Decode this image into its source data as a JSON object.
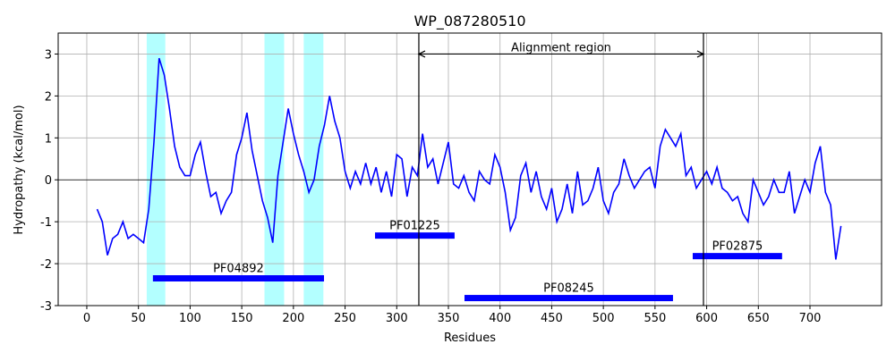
{
  "chart_data": {
    "type": "line",
    "title": "WP_087280510",
    "xlabel": "Residues",
    "ylabel": "Hydropathy (kcal/mol)",
    "x": [
      10,
      15,
      20,
      25,
      30,
      35,
      40,
      45,
      50,
      55,
      60,
      65,
      70,
      75,
      80,
      85,
      90,
      95,
      100,
      105,
      110,
      115,
      120,
      125,
      130,
      135,
      140,
      145,
      150,
      155,
      160,
      165,
      170,
      175,
      180,
      185,
      190,
      195,
      200,
      205,
      210,
      215,
      220,
      225,
      230,
      235,
      240,
      245,
      250,
      255,
      260,
      265,
      270,
      275,
      280,
      285,
      290,
      295,
      300,
      305,
      310,
      315,
      320,
      325,
      330,
      335,
      340,
      345,
      350,
      355,
      360,
      365,
      370,
      375,
      380,
      385,
      390,
      395,
      400,
      405,
      410,
      415,
      420,
      425,
      430,
      435,
      440,
      445,
      450,
      455,
      460,
      465,
      470,
      475,
      480,
      485,
      490,
      495,
      500,
      505,
      510,
      515,
      520,
      525,
      530,
      535,
      540,
      545,
      550,
      555,
      560,
      565,
      570,
      575,
      580,
      585,
      590,
      595,
      600,
      605,
      610,
      615,
      620,
      625,
      630,
      635,
      640,
      645,
      650,
      655,
      660,
      665,
      670,
      675,
      680,
      685,
      690,
      695,
      700,
      705,
      710,
      715,
      720,
      725,
      730
    ],
    "values": [
      -0.7,
      -1.0,
      -1.8,
      -1.4,
      -1.3,
      -1.0,
      -1.4,
      -1.3,
      -1.4,
      -1.5,
      -0.7,
      0.9,
      2.9,
      2.5,
      1.7,
      0.8,
      0.3,
      0.1,
      0.1,
      0.6,
      0.9,
      0.2,
      -0.4,
      -0.3,
      -0.8,
      -0.5,
      -0.3,
      0.6,
      1.0,
      1.6,
      0.7,
      0.1,
      -0.5,
      -0.9,
      -1.5,
      0.1,
      0.9,
      1.7,
      1.1,
      0.6,
      0.2,
      -0.3,
      0.0,
      0.8,
      1.3,
      2.0,
      1.4,
      1.0,
      0.2,
      -0.2,
      0.2,
      -0.1,
      0.4,
      -0.1,
      0.3,
      -0.3,
      0.2,
      -0.4,
      0.6,
      0.5,
      -0.4,
      0.3,
      0.1,
      1.1,
      0.3,
      0.5,
      -0.1,
      0.4,
      0.9,
      -0.1,
      -0.2,
      0.1,
      -0.3,
      -0.5,
      0.2,
      0.0,
      -0.1,
      0.6,
      0.3,
      -0.3,
      -1.2,
      -0.9,
      0.1,
      0.4,
      -0.3,
      0.2,
      -0.4,
      -0.7,
      -0.2,
      -1.0,
      -0.7,
      -0.1,
      -0.8,
      0.2,
      -0.6,
      -0.5,
      -0.2,
      0.3,
      -0.5,
      -0.8,
      -0.3,
      -0.1,
      0.5,
      0.1,
      -0.2,
      0.0,
      0.2,
      0.3,
      -0.2,
      0.8,
      1.2,
      1.0,
      0.8,
      1.1,
      0.1,
      0.3,
      -0.2,
      0.0,
      0.2,
      -0.1,
      0.3,
      -0.2,
      -0.3,
      -0.5,
      -0.4,
      -0.8,
      -1.0,
      0.0,
      -0.3,
      -0.6,
      -0.4,
      0.0,
      -0.3,
      -0.3,
      0.2,
      -0.8,
      -0.4,
      0.0,
      -0.3,
      0.4,
      0.8,
      -0.3,
      -0.6,
      -1.9,
      -1.1
    ],
    "color": "#0000ff",
    "xlim": [
      -27.7,
      769.3
    ],
    "ylim": [
      -3,
      3.5
    ],
    "xticks": [
      0,
      50,
      100,
      150,
      200,
      250,
      300,
      350,
      400,
      450,
      500,
      550,
      600,
      650,
      700
    ],
    "yticks": [
      -3,
      -2,
      -1,
      0,
      1,
      2,
      3
    ],
    "grid": true,
    "regions": [
      [
        58,
        76
      ],
      [
        172,
        191
      ],
      [
        210,
        229
      ]
    ],
    "region_color": "#b3ffff",
    "domains": [
      {
        "label": "PF04892",
        "start": 64,
        "end": 229.6,
        "y": -2.35
      },
      {
        "label": "PF01225",
        "start": 279,
        "end": 356,
        "y": -1.33
      },
      {
        "label": "PF02875",
        "start": 586.5,
        "end": 673,
        "y": -1.82
      },
      {
        "label": "PF08245",
        "start": 365.6,
        "end": 567.4,
        "y": -2.82
      }
    ],
    "domain_color": "#0000ff",
    "vlines": [
      321.4,
      596.9
    ],
    "annotation": {
      "text": "Alignment region",
      "start": 321.4,
      "end": 596.9,
      "y": 3
    }
  }
}
